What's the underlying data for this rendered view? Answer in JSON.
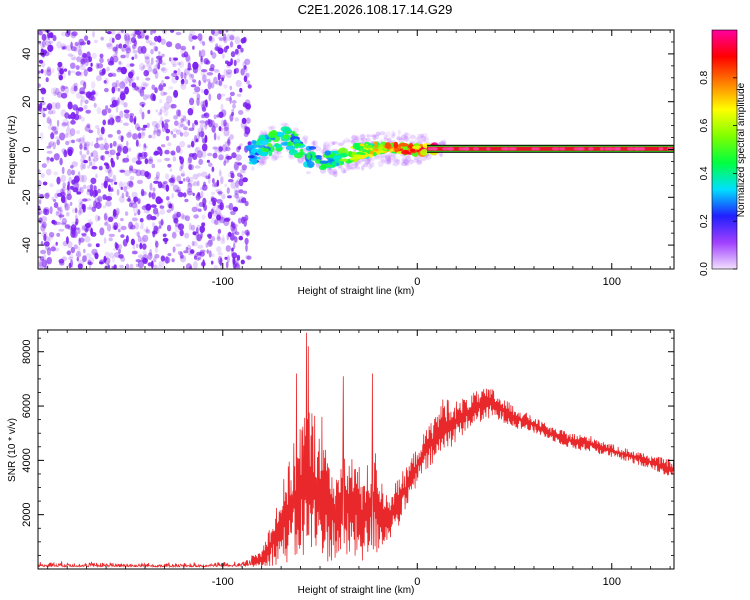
{
  "title": "C2E1.2026.108.17.14.G29",
  "colors": {
    "snr_line": "#e8282a",
    "scatter_base": "#7a1cf0",
    "track": "#e6142a",
    "axes": "#000000",
    "background": "#ffffff"
  },
  "chart_data": [
    {
      "type": "heatmap",
      "name": "spectrogram",
      "xlabel": "Height of straight line (km)",
      "ylabel": "Frequency (Hz)",
      "xlim": [
        -195,
        132
      ],
      "ylim": [
        -50,
        50
      ],
      "xticks": [
        -100,
        0,
        100
      ],
      "xtick_labels": [
        "-100",
        "0",
        "100"
      ],
      "yticks": [
        -40,
        -20,
        0,
        20,
        40
      ],
      "ytick_labels": [
        "-40",
        "-20",
        "0",
        "20",
        "40"
      ],
      "noise_region_x": [
        -195,
        -86
      ],
      "track": [
        {
          "x": -86,
          "f": -2,
          "a": 0.3
        },
        {
          "x": -80,
          "f": 0.5,
          "a": 0.42
        },
        {
          "x": -74,
          "f": 3,
          "a": 0.45
        },
        {
          "x": -68,
          "f": 4.5,
          "a": 0.45
        },
        {
          "x": -62,
          "f": 1.5,
          "a": 0.4
        },
        {
          "x": -56,
          "f": -3,
          "a": 0.4
        },
        {
          "x": -50,
          "f": -5,
          "a": 0.4
        },
        {
          "x": -44,
          "f": -4,
          "a": 0.45
        },
        {
          "x": -38,
          "f": -2.5,
          "a": 0.5
        },
        {
          "x": -32,
          "f": -1.5,
          "a": 0.55
        },
        {
          "x": -26,
          "f": -0.5,
          "a": 0.6
        },
        {
          "x": -20,
          "f": 0.2,
          "a": 0.65
        },
        {
          "x": -14,
          "f": 0.5,
          "a": 0.7
        },
        {
          "x": -8,
          "f": 0.3,
          "a": 0.75
        },
        {
          "x": -2,
          "f": 0.0,
          "a": 0.8
        },
        {
          "x": 4,
          "f": -0.3,
          "a": 0.85
        },
        {
          "x": 10,
          "f": 0.2,
          "a": 0.9
        },
        {
          "x": 20,
          "f": 0.4,
          "a": 0.95
        },
        {
          "x": 40,
          "f": 0.3,
          "a": 0.95
        },
        {
          "x": 60,
          "f": 0.3,
          "a": 0.95
        },
        {
          "x": 80,
          "f": 0.3,
          "a": 0.95
        },
        {
          "x": 100,
          "f": 0.3,
          "a": 0.95
        },
        {
          "x": 120,
          "f": 0.3,
          "a": 0.95
        },
        {
          "x": 132,
          "f": 0.3,
          "a": 0.95
        }
      ],
      "colorbar": {
        "label": "Normalized spectral amplitude",
        "ticks": [
          0.0,
          0.2,
          0.4,
          0.6,
          0.8
        ],
        "tick_labels": [
          "0.0",
          "0.2",
          "0.4",
          "0.6",
          "0.8"
        ],
        "range": [
          0,
          1
        ],
        "stops": [
          "#f2e0ff",
          "#a040ff",
          "#2020ff",
          "#00e0ff",
          "#00ff40",
          "#80ff00",
          "#ffff00",
          "#ff8000",
          "#ff0000",
          "#ff00a0"
        ]
      }
    },
    {
      "type": "line",
      "name": "snr",
      "xlabel": "Height of straight line (km)",
      "ylabel": "SNR (10 * v/v)",
      "xlim": [
        -195,
        132
      ],
      "ylim": [
        0,
        8800
      ],
      "xticks": [
        -100,
        0,
        100
      ],
      "xtick_labels": [
        "-100",
        "0",
        "100"
      ],
      "yticks": [
        2000,
        4000,
        6000,
        8000
      ],
      "ytick_labels": [
        "2000",
        "4000",
        "6000",
        "8000"
      ],
      "envelope": [
        {
          "x": -195,
          "lo": 20,
          "hi": 300
        },
        {
          "x": -160,
          "lo": 20,
          "hi": 280
        },
        {
          "x": -120,
          "lo": 20,
          "hi": 240
        },
        {
          "x": -90,
          "lo": 20,
          "hi": 320
        },
        {
          "x": -80,
          "lo": 60,
          "hi": 700
        },
        {
          "x": -72,
          "lo": 150,
          "hi": 2500
        },
        {
          "x": -64,
          "lo": 200,
          "hi": 4500
        },
        {
          "x": -58,
          "lo": 300,
          "hi": 6200
        },
        {
          "x": -52,
          "lo": 300,
          "hi": 5800
        },
        {
          "x": -46,
          "lo": 250,
          "hi": 4200
        },
        {
          "x": -40,
          "lo": 300,
          "hi": 3800
        },
        {
          "x": -34,
          "lo": 300,
          "hi": 4500
        },
        {
          "x": -28,
          "lo": 250,
          "hi": 3500
        },
        {
          "x": -22,
          "lo": 400,
          "hi": 4500
        },
        {
          "x": -16,
          "lo": 900,
          "hi": 2800
        },
        {
          "x": -10,
          "lo": 1500,
          "hi": 3300
        },
        {
          "x": -4,
          "lo": 2400,
          "hi": 4000
        },
        {
          "x": 2,
          "lo": 3400,
          "hi": 4800
        },
        {
          "x": 8,
          "lo": 3800,
          "hi": 5600
        },
        {
          "x": 14,
          "lo": 4200,
          "hi": 6400
        },
        {
          "x": 20,
          "lo": 4700,
          "hi": 6200
        },
        {
          "x": 26,
          "lo": 5100,
          "hi": 6400
        },
        {
          "x": 32,
          "lo": 5400,
          "hi": 6600
        },
        {
          "x": 38,
          "lo": 5500,
          "hi": 6700
        },
        {
          "x": 44,
          "lo": 5400,
          "hi": 6300
        },
        {
          "x": 50,
          "lo": 5200,
          "hi": 6000
        },
        {
          "x": 60,
          "lo": 5000,
          "hi": 5600
        },
        {
          "x": 70,
          "lo": 4700,
          "hi": 5200
        },
        {
          "x": 80,
          "lo": 4400,
          "hi": 5000
        },
        {
          "x": 90,
          "lo": 4300,
          "hi": 4900
        },
        {
          "x": 100,
          "lo": 4100,
          "hi": 4600
        },
        {
          "x": 110,
          "lo": 3900,
          "hi": 4400
        },
        {
          "x": 120,
          "lo": 3700,
          "hi": 4200
        },
        {
          "x": 132,
          "lo": 3300,
          "hi": 4000
        }
      ],
      "spikes": [
        {
          "x": -62,
          "y": 7200
        },
        {
          "x": -57,
          "y": 8700
        },
        {
          "x": -56,
          "y": 8200
        },
        {
          "x": -49,
          "y": 5600
        },
        {
          "x": -38,
          "y": 7100
        },
        {
          "x": -23,
          "y": 7200
        }
      ]
    }
  ]
}
